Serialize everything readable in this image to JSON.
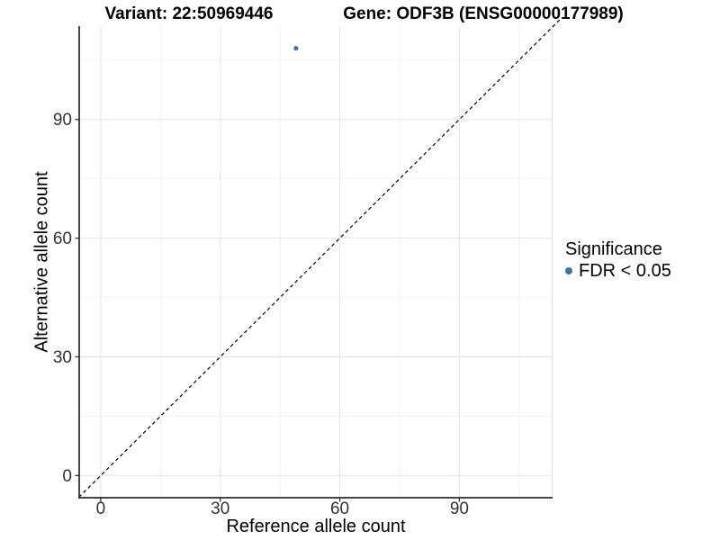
{
  "titles": {
    "variant": "Variant: 22:50969446",
    "gene": "Gene: ODF3B (ENSG00000177989)"
  },
  "legend": {
    "title": "Significance"
  },
  "chart_data": {
    "type": "scatter",
    "title": "Variant: 22:50969446 | Gene: ODF3B (ENSG00000177989)",
    "xlabel": "Reference allele count",
    "ylabel": "Alternative allele count",
    "xlim": [
      -5.4,
      113.4
    ],
    "ylim": [
      -5.6,
      113.6
    ],
    "x_ticks": [
      0,
      30,
      60,
      90
    ],
    "y_ticks": [
      0,
      30,
      60,
      90
    ],
    "x_minor_gridlines": [
      15,
      45,
      75,
      105
    ],
    "y_minor_gridlines": [
      15,
      45,
      75,
      105
    ],
    "grid": true,
    "legend_position": "right",
    "legend_title": "Significance",
    "series": [
      {
        "name": "FDR < 0.05",
        "color": "#4173ab",
        "point_radius": 2.6,
        "points": [
          {
            "x": 49,
            "y": 108
          }
        ]
      }
    ],
    "reference_line": {
      "type": "identity y=x",
      "style": "dashed",
      "color": "#000000",
      "extent": [
        -5.5,
        115.5
      ]
    }
  }
}
